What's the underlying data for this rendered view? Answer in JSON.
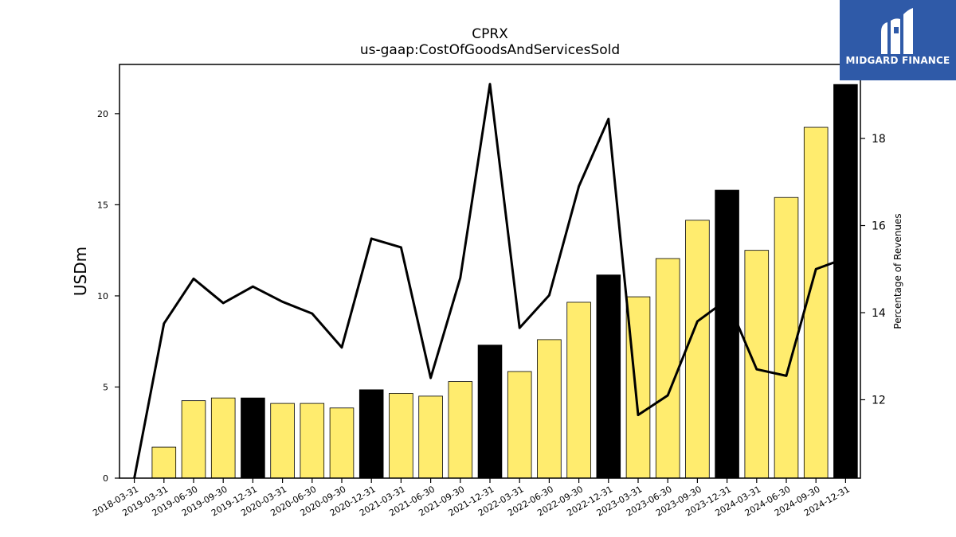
{
  "brand": {
    "name": "MIDGARD FINANCE",
    "bg_color": "#2f5aa8"
  },
  "chart_data": {
    "type": "bar",
    "title": "CPRX",
    "subtitle": "us-gaap:CostOfGoodsAndServicesSold",
    "ylabel": "USDm",
    "y2label": "Percentage of Revenues",
    "ylim": [
      0,
      22.7
    ],
    "y2lim": [
      10.2,
      19.7
    ],
    "yticks": [
      0,
      5,
      10,
      15,
      20
    ],
    "y2ticks": [
      12,
      14,
      16,
      18
    ],
    "categories": [
      "2018-03-31",
      "2019-03-31",
      "2019-06-30",
      "2019-09-30",
      "2019-12-31",
      "2020-03-31",
      "2020-06-30",
      "2020-09-30",
      "2020-12-31",
      "2021-03-31",
      "2021-06-30",
      "2021-09-30",
      "2021-12-31",
      "2022-03-31",
      "2022-06-30",
      "2022-09-30",
      "2022-12-31",
      "2023-03-31",
      "2023-06-30",
      "2023-09-30",
      "2023-12-31",
      "2024-03-31",
      "2024-06-30",
      "2024-09-30",
      "2024-12-31"
    ],
    "series": [
      {
        "type": "bar",
        "values": [
          null,
          1.7,
          4.25,
          4.4,
          4.4,
          4.1,
          4.1,
          3.85,
          4.85,
          4.65,
          4.5,
          5.3,
          7.3,
          5.85,
          7.6,
          9.65,
          11.15,
          9.95,
          12.05,
          14.15,
          15.8,
          12.5,
          15.4,
          19.25,
          21.6
        ],
        "colors": [
          "#ffec6e",
          "#ffec6e",
          "#ffec6e",
          "#ffec6e",
          "#000000",
          "#ffec6e",
          "#ffec6e",
          "#ffec6e",
          "#000000",
          "#ffec6e",
          "#ffec6e",
          "#ffec6e",
          "#000000",
          "#ffec6e",
          "#ffec6e",
          "#ffec6e",
          "#000000",
          "#ffec6e",
          "#ffec6e",
          "#ffec6e",
          "#000000",
          "#ffec6e",
          "#ffec6e",
          "#ffec6e",
          "#000000"
        ]
      },
      {
        "type": "line",
        "axis": "right",
        "values": [
          null,
          13.75,
          14.78,
          14.22,
          14.6,
          14.25,
          13.98,
          13.2,
          15.7,
          15.5,
          12.5,
          14.8,
          19.25,
          13.65,
          14.4,
          16.9,
          18.45,
          11.65,
          12.1,
          13.8,
          14.3,
          12.7,
          12.55,
          15.0,
          15.25
        ]
      }
    ],
    "colors": {
      "bar_regular": "#ffec6e",
      "bar_q4": "#000000",
      "line": "#000000"
    },
    "grid": false,
    "legend": "none"
  }
}
